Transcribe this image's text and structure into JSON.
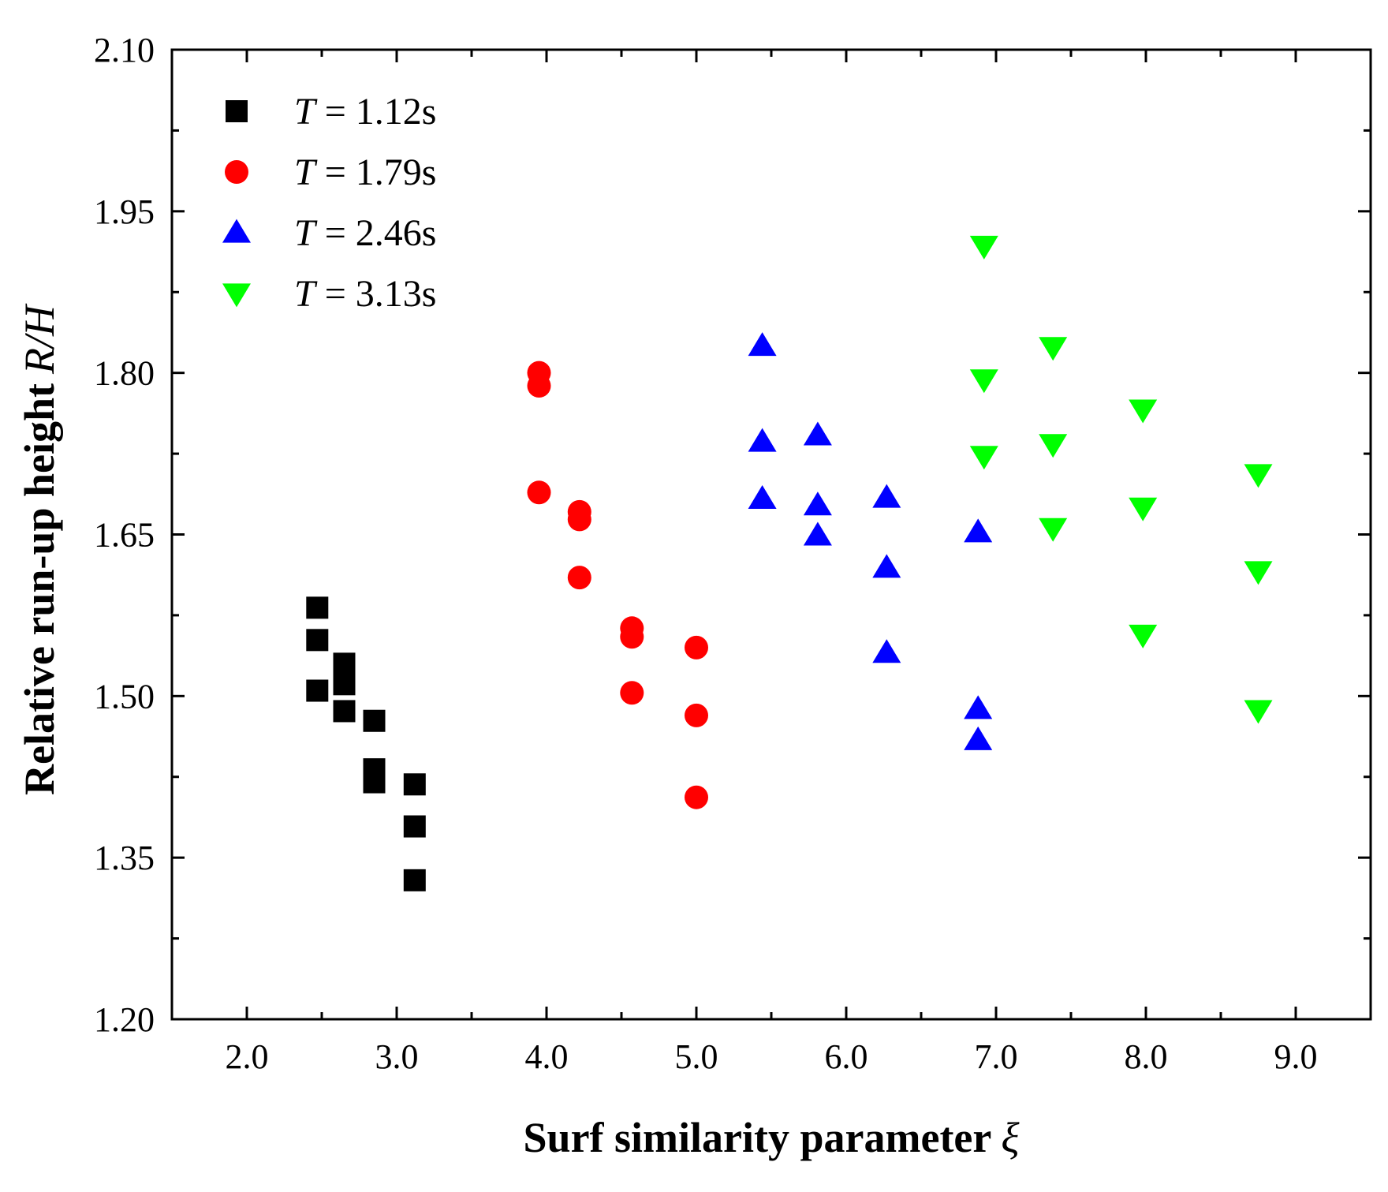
{
  "chart_data": {
    "type": "scatter",
    "title": "",
    "xlabel": "Surf similarity  parameter",
    "xlabel_symbol": "ξ",
    "ylabel": "Relative run-up height",
    "ylabel_symbol": "R/H",
    "xlim": [
      1.5,
      9.5
    ],
    "ylim": [
      1.2,
      2.1
    ],
    "x_ticks": [
      2.0,
      3.0,
      4.0,
      5.0,
      6.0,
      7.0,
      8.0,
      9.0
    ],
    "x_tick_labels": [
      "2.0",
      "3.0",
      "4.0",
      "5.0",
      "6.0",
      "7.0",
      "8.0",
      "9.0"
    ],
    "y_ticks": [
      1.2,
      1.35,
      1.5,
      1.65,
      1.8,
      1.95,
      2.1
    ],
    "y_tick_labels": [
      "1.20",
      "1.35",
      "1.50",
      "1.65",
      "1.80",
      "1.95",
      "2.10"
    ],
    "grid": false,
    "legend_position": "top-left",
    "series": [
      {
        "name": "T = 1.12s",
        "var": "T",
        "label_rest": " = 1.12s",
        "marker": "square",
        "color": "#000000",
        "points": [
          [
            2.47,
            1.582
          ],
          [
            2.47,
            1.552
          ],
          [
            2.47,
            1.505
          ],
          [
            2.65,
            1.53
          ],
          [
            2.65,
            1.522
          ],
          [
            2.65,
            1.511
          ],
          [
            2.65,
            1.486
          ],
          [
            2.85,
            1.477
          ],
          [
            2.85,
            1.432
          ],
          [
            2.85,
            1.42
          ],
          [
            3.12,
            1.418
          ],
          [
            3.12,
            1.379
          ],
          [
            3.12,
            1.329
          ]
        ]
      },
      {
        "name": "T = 1.79s",
        "var": "T",
        "label_rest": " = 1.79s",
        "marker": "circle",
        "color": "#ff0000",
        "points": [
          [
            3.95,
            1.8
          ],
          [
            3.95,
            1.788
          ],
          [
            3.95,
            1.689
          ],
          [
            4.22,
            1.671
          ],
          [
            4.22,
            1.664
          ],
          [
            4.22,
            1.61
          ],
          [
            4.57,
            1.563
          ],
          [
            4.57,
            1.555
          ],
          [
            4.57,
            1.503
          ],
          [
            5.0,
            1.545
          ],
          [
            5.0,
            1.482
          ],
          [
            5.0,
            1.406
          ]
        ]
      },
      {
        "name": "T = 2.46s",
        "var": "T",
        "label_rest": " = 2.46s",
        "marker": "triangle-up",
        "color": "#0000ff",
        "points": [
          [
            5.44,
            1.825
          ],
          [
            5.44,
            1.736
          ],
          [
            5.44,
            1.683
          ],
          [
            5.81,
            1.742
          ],
          [
            5.81,
            1.677
          ],
          [
            5.81,
            1.649
          ],
          [
            6.27,
            1.684
          ],
          [
            6.27,
            1.619
          ],
          [
            6.27,
            1.54
          ],
          [
            6.88,
            1.652
          ],
          [
            6.88,
            1.488
          ],
          [
            6.88,
            1.459
          ]
        ]
      },
      {
        "name": "T = 3.13s",
        "var": "T",
        "label_rest": " = 3.13s",
        "marker": "triangle-down",
        "color": "#00ff00",
        "points": [
          [
            6.92,
            1.918
          ],
          [
            6.92,
            1.794
          ],
          [
            6.92,
            1.723
          ],
          [
            7.38,
            1.824
          ],
          [
            7.38,
            1.734
          ],
          [
            7.38,
            1.656
          ],
          [
            7.98,
            1.766
          ],
          [
            7.98,
            1.675
          ],
          [
            7.98,
            1.557
          ],
          [
            8.75,
            1.706
          ],
          [
            8.75,
            1.616
          ],
          [
            8.75,
            1.487
          ]
        ]
      }
    ]
  }
}
